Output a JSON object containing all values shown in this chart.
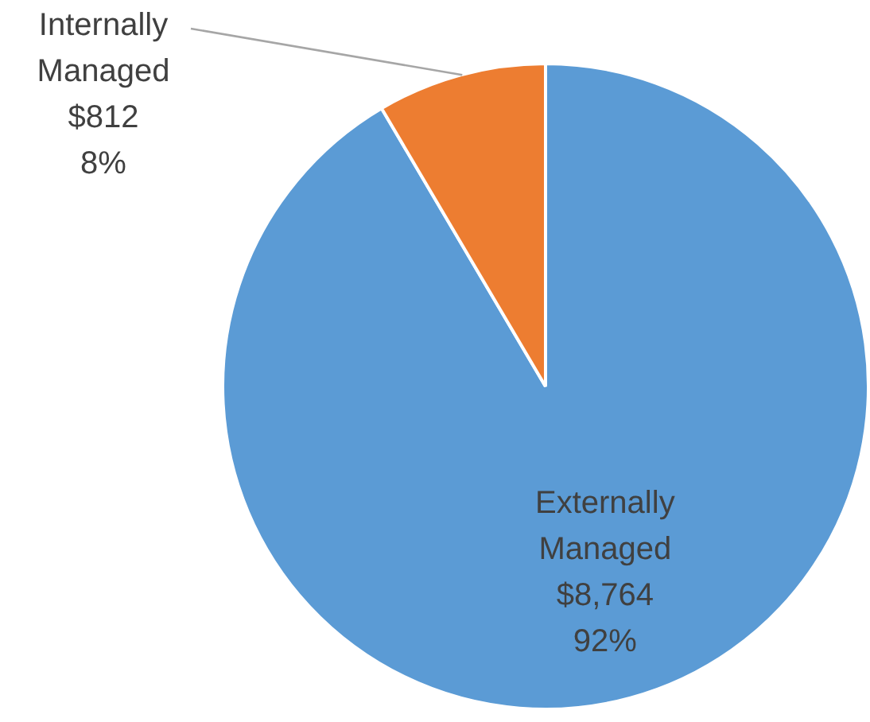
{
  "chart_data": {
    "type": "pie",
    "categories": [
      "Externally Managed",
      "Internally Managed"
    ],
    "values": [
      8764,
      812
    ],
    "colors": [
      "#5b9bd5",
      "#ed7d31"
    ],
    "value_labels": [
      "$8,764\n92%",
      "$812\n8%"
    ],
    "legend": false
  }
}
